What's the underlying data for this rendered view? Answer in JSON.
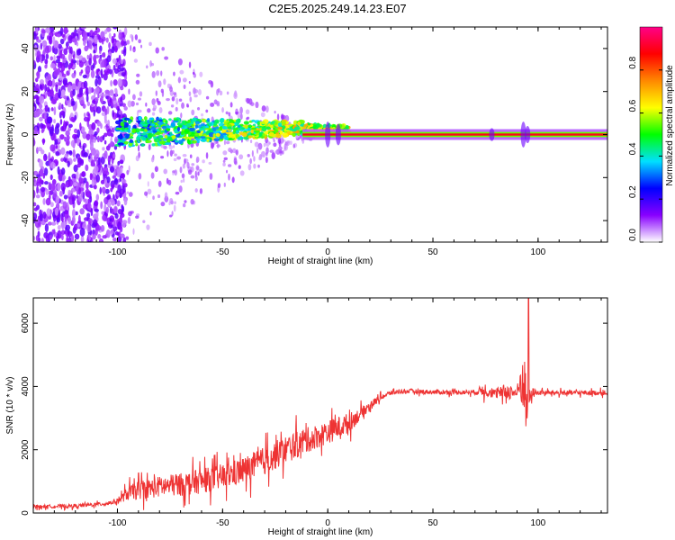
{
  "title": "C2E5.2025.249.14.23.E07",
  "chart_data": [
    {
      "type": "heatmap",
      "xlabel": "Height of straight line (km)",
      "ylabel": "Frequency (Hz)",
      "xlim": [
        -140,
        133
      ],
      "ylim": [
        -50,
        50
      ],
      "xticks": [
        -100,
        -50,
        0,
        50,
        100
      ],
      "yticks": [
        -40,
        -20,
        0,
        20,
        40
      ],
      "colorbar": {
        "label": "Normalized spectral amplitude",
        "range": [
          0.0,
          1.0
        ],
        "ticks": [
          "0.0",
          "0.2",
          "0.4",
          "0.6",
          "0.8"
        ],
        "tick_values": [
          0.0,
          0.2,
          0.4,
          0.6,
          0.8
        ],
        "colors": [
          "#ffffff",
          "#8800ff",
          "#0000ff",
          "#00e0ff",
          "#00ff00",
          "#ffff00",
          "#ff8800",
          "#ff0000",
          "#ff0088"
        ]
      }
    },
    {
      "type": "line",
      "xlabel": "Height of straight line (km)",
      "ylabel": "SNR (10 * v/v)",
      "xlim": [
        -140,
        133
      ],
      "ylim": [
        0,
        6800
      ],
      "xticks": [
        -100,
        -50,
        0,
        50,
        100
      ],
      "yticks": [
        0,
        2000,
        4000,
        6000
      ],
      "series": [
        {
          "name": "SNR",
          "color": "#ee3333",
          "x": [
            -140,
            -120,
            -105,
            -100,
            -95,
            -90,
            -80,
            -70,
            -60,
            -50,
            -40,
            -30,
            -20,
            -10,
            0,
            5,
            10,
            15,
            20,
            25,
            30,
            35,
            40,
            50,
            60,
            70,
            75,
            80,
            85,
            90,
            93,
            95,
            97,
            100,
            110,
            120,
            133
          ],
          "values": [
            200,
            220,
            300,
            380,
            620,
            720,
            830,
            900,
            1000,
            1150,
            1350,
            1650,
            2000,
            2300,
            2550,
            2700,
            2850,
            3100,
            3400,
            3650,
            3800,
            3850,
            3850,
            3820,
            3820,
            3820,
            3900,
            3750,
            3850,
            3800,
            4300,
            3400,
            3800,
            3800,
            3800,
            3800,
            3800
          ],
          "noise": [
            120,
            130,
            140,
            180,
            500,
            650,
            750,
            800,
            850,
            900,
            950,
            1000,
            1000,
            900,
            800,
            800,
            700,
            450,
            300,
            200,
            180,
            160,
            160,
            160,
            170,
            170,
            500,
            300,
            600,
            400,
            2400,
            1200,
            400,
            170,
            170,
            170,
            170
          ]
        }
      ]
    }
  ]
}
